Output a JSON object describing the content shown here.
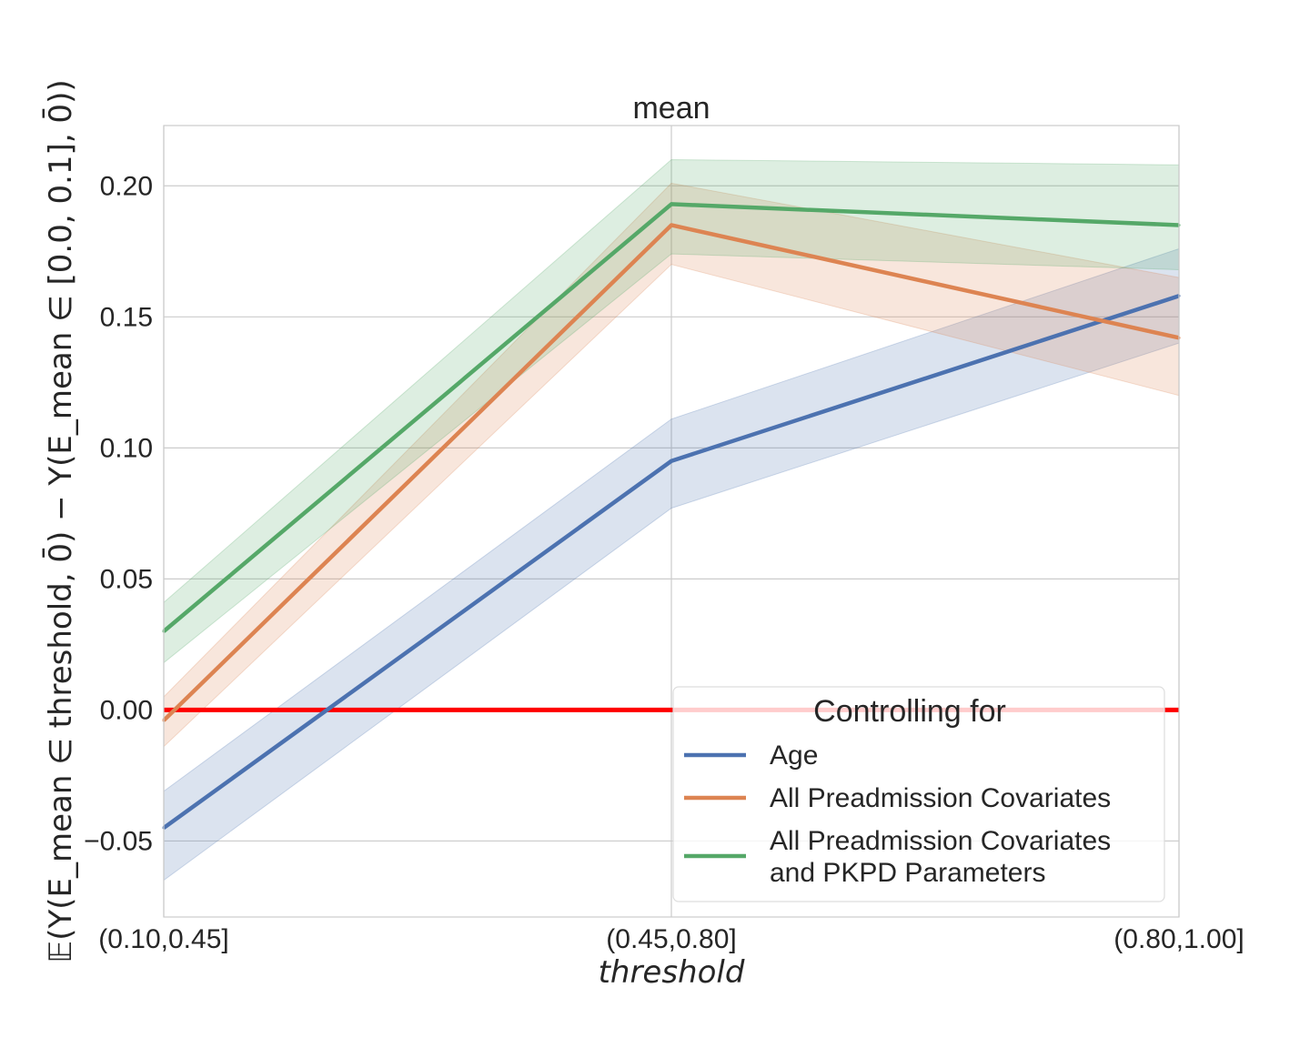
{
  "chart_data": {
    "type": "line",
    "title": "mean",
    "xlabel": "threshold",
    "ylabel": "𝔼(Y(E_mean ∈ threshold, 0̄) − Y(E_mean ∈ [0.0, 0.1], 0̄))",
    "categories": [
      "(0.10,0.45]",
      "(0.45,0.80]",
      "(0.80,1.00]"
    ],
    "ylim": [
      -0.079,
      0.223
    ],
    "yticks": [
      -0.05,
      0.0,
      0.05,
      0.1,
      0.15,
      0.2
    ],
    "ytick_labels": [
      "−0.05",
      "0.00",
      "0.05",
      "0.10",
      "0.15",
      "0.20"
    ],
    "grid": true,
    "legend": {
      "title": "Controlling for",
      "placement": "lower-right"
    },
    "reference_line": {
      "y": 0.0,
      "color": "#ff0000"
    },
    "series": [
      {
        "name": "Age",
        "color": "#4c72b0",
        "values": [
          -0.045,
          0.095,
          0.158
        ],
        "ci_lower": [
          -0.065,
          0.077,
          0.14
        ],
        "ci_upper": [
          -0.031,
          0.111,
          0.176
        ]
      },
      {
        "name": "All Preadmission Covariates",
        "color": "#dd8452",
        "values": [
          -0.004,
          0.185,
          0.142
        ],
        "ci_lower": [
          -0.014,
          0.17,
          0.12
        ],
        "ci_upper": [
          0.005,
          0.201,
          0.165
        ]
      },
      {
        "name": "All Preadmission Covariates\nand PKPD Parameters",
        "color": "#55a868",
        "values": [
          0.03,
          0.193,
          0.185
        ],
        "ci_lower": [
          0.018,
          0.174,
          0.168
        ],
        "ci_upper": [
          0.041,
          0.21,
          0.208
        ]
      }
    ]
  }
}
